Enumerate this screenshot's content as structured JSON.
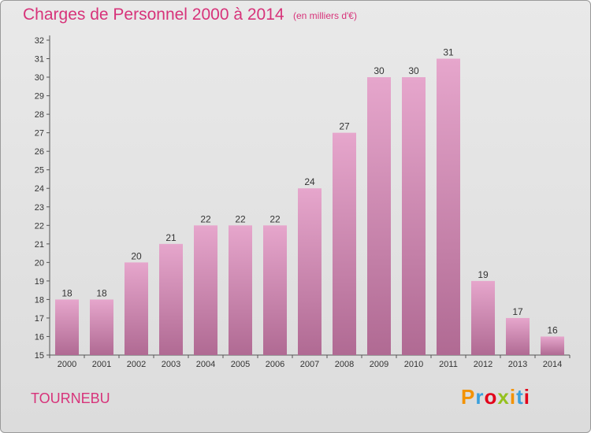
{
  "header": {
    "title": "Charges de Personnel 2000 à 2014",
    "subtitle": "(en milliers d'€)"
  },
  "footer": {
    "commune": "TOURNEBU",
    "logo_text": "Proxiti",
    "logo_colors": [
      "#f39200",
      "#3aa0dd",
      "#e2001a",
      "#95c11f",
      "#f39200",
      "#3aa0dd",
      "#e2001a"
    ]
  },
  "colors": {
    "bar_top": "#e6a6cc",
    "bar_bottom": "#b06a93",
    "accent": "#d7337a",
    "text": "#333333"
  },
  "chart_data": {
    "type": "bar",
    "categories": [
      "2000",
      "2001",
      "2002",
      "2003",
      "2004",
      "2005",
      "2006",
      "2007",
      "2008",
      "2009",
      "2010",
      "2011",
      "2012",
      "2013",
      "2014"
    ],
    "values": [
      18,
      18,
      20,
      21,
      22,
      22,
      22,
      24,
      27,
      30,
      30,
      31,
      19,
      17,
      16
    ],
    "ylim": [
      15,
      32
    ],
    "yticks": [
      15,
      16,
      17,
      18,
      19,
      20,
      21,
      22,
      23,
      24,
      25,
      26,
      27,
      28,
      29,
      30,
      31,
      32
    ],
    "grid": false,
    "title": "Charges de Personnel 2000 à 2014",
    "xlabel": "",
    "ylabel": ""
  }
}
